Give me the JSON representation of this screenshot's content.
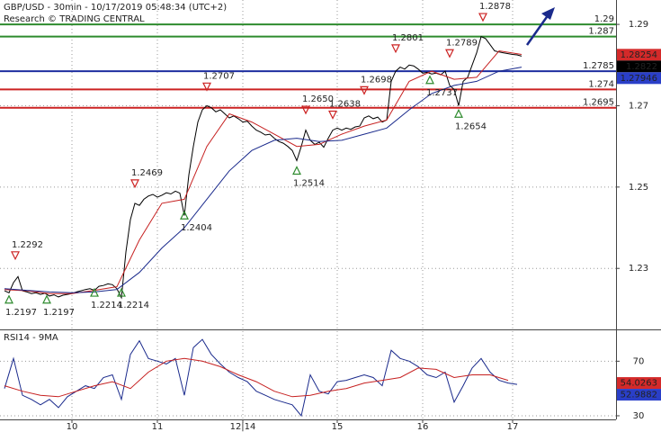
{
  "chart_data": [
    {
      "type": "line",
      "title": "GBP/USD - 30min - 10/17/2019 05:48:34 (UTC+2)",
      "subtitle": "Research © TRADING CENTRAL",
      "xlim": [
        -1,
        136
      ],
      "ylim": [
        1.215,
        1.296
      ],
      "yticks": [
        1.23,
        1.25,
        1.27,
        1.29
      ],
      "grid": true,
      "series": [
        {
          "color": "#000000",
          "x": [
            0,
            1,
            2,
            3,
            4,
            5,
            6,
            7,
            8,
            9,
            10,
            11,
            12,
            13,
            14,
            15,
            16,
            17,
            18,
            19,
            20,
            21,
            22,
            23,
            24,
            25,
            26,
            27,
            28,
            29,
            30,
            31,
            32,
            33,
            34,
            35,
            36,
            37,
            38,
            39,
            40,
            41,
            42,
            43,
            44,
            45,
            46,
            47,
            48,
            49,
            50,
            51,
            52,
            53,
            54,
            55,
            56,
            57,
            58,
            59,
            60,
            61,
            62,
            63,
            64,
            65,
            66,
            67,
            68,
            69,
            70,
            71,
            72,
            73,
            74,
            75,
            76,
            77,
            78,
            79,
            80,
            81,
            82,
            83,
            84,
            85,
            86,
            87,
            88,
            89,
            90,
            91,
            92,
            93,
            94,
            95,
            96,
            97,
            98,
            99,
            100,
            101,
            102,
            103,
            104,
            105,
            106,
            107,
            108,
            109,
            110,
            111,
            112,
            113,
            114,
            115
          ],
          "values": [
            1.2245,
            1.224,
            1.2265,
            1.228,
            1.2245,
            1.2242,
            1.2238,
            1.224,
            1.2236,
            1.2239,
            1.2232,
            1.2235,
            1.223,
            1.2234,
            1.2236,
            1.2238,
            1.2242,
            1.2245,
            1.2248,
            1.225,
            1.2246,
            1.2256,
            1.2258,
            1.2262,
            1.226,
            1.225,
            1.2228,
            1.234,
            1.242,
            1.246,
            1.2455,
            1.247,
            1.2478,
            1.2482,
            1.2475,
            1.248,
            1.2486,
            1.2483,
            1.249,
            1.2485,
            1.243,
            1.253,
            1.26,
            1.266,
            1.269,
            1.27,
            1.2695,
            1.2685,
            1.269,
            1.268,
            1.267,
            1.2675,
            1.2668,
            1.266,
            1.2662,
            1.265,
            1.264,
            1.2635,
            1.2628,
            1.263,
            1.262,
            1.2612,
            1.2608,
            1.26,
            1.259,
            1.2565,
            1.26,
            1.264,
            1.2615,
            1.2605,
            1.261,
            1.2598,
            1.262,
            1.264,
            1.2645,
            1.264,
            1.2645,
            1.2642,
            1.2648,
            1.265,
            1.267,
            1.2675,
            1.2668,
            1.2672,
            1.266,
            1.2665,
            1.276,
            1.2785,
            1.2795,
            1.279,
            1.28,
            1.2798,
            1.279,
            1.278,
            1.2782,
            1.2778,
            1.278,
            1.2776,
            1.2785,
            1.275,
            1.274,
            1.27,
            1.276,
            1.277,
            1.28,
            1.283,
            1.287,
            1.2865,
            1.285,
            1.2835,
            1.2832,
            1.283,
            1.2828,
            1.2826,
            1.2825,
            1.2822
          ]
        },
        {
          "color": "#c62020",
          "x": [
            0,
            5,
            10,
            15,
            20,
            25,
            30,
            35,
            40,
            45,
            50,
            55,
            60,
            65,
            70,
            75,
            80,
            85,
            90,
            95,
            100,
            105,
            110,
            115
          ],
          "values": [
            1.2248,
            1.2245,
            1.2238,
            1.2238,
            1.2246,
            1.2255,
            1.237,
            1.246,
            1.247,
            1.26,
            1.268,
            1.266,
            1.263,
            1.26,
            1.2605,
            1.263,
            1.265,
            1.2665,
            1.276,
            1.2785,
            1.2765,
            1.277,
            1.2835,
            1.2826
          ]
        },
        {
          "color": "#1a2a8c",
          "x": [
            0,
            5,
            10,
            15,
            20,
            25,
            30,
            35,
            40,
            45,
            50,
            55,
            60,
            65,
            70,
            75,
            80,
            85,
            90,
            95,
            100,
            105,
            110,
            115
          ],
          "values": [
            1.225,
            1.2246,
            1.2242,
            1.224,
            1.2242,
            1.2248,
            1.229,
            1.235,
            1.24,
            1.247,
            1.254,
            1.259,
            1.2615,
            1.262,
            1.2612,
            1.2615,
            1.263,
            1.2645,
            1.269,
            1.273,
            1.275,
            1.276,
            1.2785,
            1.2795
          ]
        }
      ],
      "levels": [
        {
          "value": 1.29,
          "color": "#2e8b2e"
        },
        {
          "value": 1.287,
          "color": "#2e8b2e"
        },
        {
          "value": 1.2785,
          "color": "#1f2fa0"
        },
        {
          "value": 1.274,
          "color": "#cc2222"
        },
        {
          "value": 1.2695,
          "color": "#cc2222"
        }
      ],
      "price_boxes": [
        {
          "value": 1.28254,
          "color": "#d42a2a"
        },
        {
          "value": 1.2822,
          "color": "#000000"
        },
        {
          "value": 1.27946,
          "color": "#2a3fc8"
        }
      ],
      "annotations": [
        {
          "kind": "high",
          "x": 2.4,
          "value": 1.2292,
          "label": "1.2292"
        },
        {
          "kind": "low",
          "x": 1,
          "value": 1.2197,
          "label": "1.2197"
        },
        {
          "kind": "low",
          "x": 9.4,
          "value": 1.2197,
          "label": "1.2197"
        },
        {
          "kind": "low",
          "x": 20,
          "value": 1.2214,
          "label": "1.2214"
        },
        {
          "kind": "low",
          "x": 26,
          "value": 1.2214,
          "label": "1.2214"
        },
        {
          "kind": "high",
          "x": 29,
          "value": 1.2469,
          "label": "1.2469"
        },
        {
          "kind": "low",
          "x": 40,
          "value": 1.2404,
          "label": "1.2404"
        },
        {
          "kind": "high",
          "x": 45,
          "value": 1.2707,
          "label": "1.2707"
        },
        {
          "kind": "low",
          "x": 65,
          "value": 1.2514,
          "label": "1.2514"
        },
        {
          "kind": "high",
          "x": 67,
          "value": 1.265,
          "label": "1.2650"
        },
        {
          "kind": "high",
          "x": 73,
          "value": 1.2638,
          "label": "1.2638"
        },
        {
          "kind": "high",
          "x": 80,
          "value": 1.2698,
          "label": "1.2698"
        },
        {
          "kind": "high",
          "x": 87,
          "value": 1.2801,
          "label": "1.2801"
        },
        {
          "kind": "low",
          "x": 94.6,
          "value": 1.2737,
          "label": "1.2737"
        },
        {
          "kind": "high",
          "x": 99,
          "value": 1.2789,
          "label": "1.2789"
        },
        {
          "kind": "low",
          "x": 101,
          "value": 1.2654,
          "label": "1.2654"
        },
        {
          "kind": "high",
          "x": 106.4,
          "value": 1.2878,
          "label": "1.2878"
        }
      ]
    },
    {
      "type": "line",
      "title": "RSI14 - 9MA",
      "xlim": [
        -1,
        136
      ],
      "ylim": [
        28,
        92
      ],
      "yticks": [
        30,
        70
      ],
      "grid": true,
      "xticks": [
        {
          "value": 15,
          "label": "10"
        },
        {
          "value": 34,
          "label": "11"
        },
        {
          "value": 53,
          "label": "12|14"
        },
        {
          "value": 74,
          "label": "15"
        },
        {
          "value": 93,
          "label": "16"
        },
        {
          "value": 113,
          "label": "17"
        }
      ],
      "series": [
        {
          "color": "#1a2a8c",
          "x": [
            0,
            2,
            4,
            6,
            8,
            10,
            12,
            14,
            16,
            18,
            20,
            22,
            24,
            26,
            28,
            30,
            32,
            34,
            36,
            38,
            40,
            42,
            44,
            46,
            48,
            50,
            52,
            54,
            56,
            58,
            60,
            62,
            64,
            66,
            68,
            70,
            72,
            74,
            76,
            78,
            80,
            82,
            84,
            86,
            88,
            90,
            92,
            94,
            96,
            98,
            100,
            102,
            104,
            106,
            108,
            110,
            112,
            114
          ],
          "values": [
            50,
            72,
            45,
            42,
            38,
            42,
            36,
            44,
            48,
            52,
            50,
            58,
            60,
            42,
            75,
            85,
            72,
            70,
            68,
            72,
            45,
            80,
            86,
            75,
            68,
            62,
            58,
            55,
            48,
            45,
            42,
            40,
            38,
            30,
            60,
            48,
            46,
            55,
            56,
            58,
            60,
            58,
            52,
            78,
            72,
            70,
            66,
            60,
            58,
            62,
            40,
            52,
            65,
            72,
            62,
            56,
            54,
            53
          ]
        },
        {
          "color": "#c62020",
          "x": [
            0,
            4,
            8,
            12,
            16,
            20,
            24,
            28,
            32,
            36,
            40,
            44,
            48,
            52,
            56,
            60,
            64,
            68,
            72,
            76,
            80,
            84,
            88,
            92,
            96,
            100,
            104,
            108,
            112
          ],
          "values": [
            52,
            48,
            45,
            44,
            48,
            52,
            55,
            50,
            62,
            70,
            72,
            70,
            66,
            60,
            55,
            48,
            44,
            45,
            48,
            50,
            54,
            56,
            58,
            65,
            64,
            58,
            60,
            60,
            56
          ]
        }
      ],
      "value_boxes": [
        {
          "value": 54.0263,
          "color": "#d42a2a"
        },
        {
          "value": 52.9882,
          "color": "#2a3fc8"
        }
      ]
    }
  ]
}
